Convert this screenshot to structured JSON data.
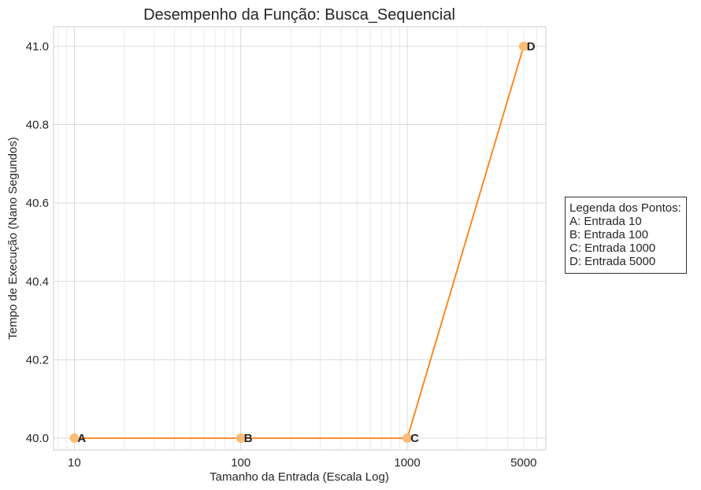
{
  "chart_data": {
    "type": "line",
    "title": "Desempenho da Função: Busca_Sequencial",
    "xlabel": "Tamanho da Entrada (Escala Log)",
    "ylabel": "Tempo de Execução (Nano Segundos)",
    "x_scale": "log",
    "xlim": [
      7.5,
      6800
    ],
    "ylim": [
      39.97,
      41.05
    ],
    "x_ticks": [
      10,
      100,
      1000,
      5000
    ],
    "x_tick_labels": [
      "10",
      "100",
      "1000",
      "5000"
    ],
    "y_ticks": [
      40.0,
      40.2,
      40.4,
      40.6,
      40.8,
      41.0
    ],
    "y_tick_labels": [
      "40.0",
      "40.2",
      "40.4",
      "40.6",
      "40.8",
      "41.0"
    ],
    "grid": true,
    "line_color": "#ff7f0e",
    "marker_color": "#ffbb78",
    "series": [
      {
        "points": [
          {
            "label": "A",
            "x": 10,
            "y": 40.0
          },
          {
            "label": "B",
            "x": 100,
            "y": 40.0
          },
          {
            "label": "C",
            "x": 1000,
            "y": 40.0
          },
          {
            "label": "D",
            "x": 5000,
            "y": 41.0
          }
        ]
      }
    ],
    "legend": {
      "placement": "right-outside",
      "title": "Legenda dos Pontos:",
      "entries": [
        "A: Entrada 10",
        "B: Entrada 100",
        "C: Entrada 1000",
        "D: Entrada 5000"
      ]
    }
  }
}
